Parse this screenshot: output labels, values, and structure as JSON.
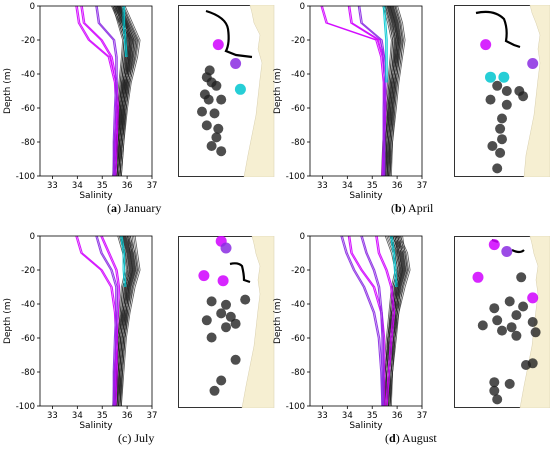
{
  "figure": {
    "panels": [
      {
        "letter": "a",
        "month": "January"
      },
      {
        "letter": "b",
        "month": "April"
      },
      {
        "letter": "c",
        "month": "July"
      },
      {
        "letter": "d",
        "month": "August"
      }
    ]
  },
  "chart_data": [
    {
      "type": "line",
      "panel": "a",
      "xlabel": "Salinity",
      "ylabel": "Depth (m)",
      "xlim": [
        32.5,
        37.0
      ],
      "ylim": [
        -100,
        0
      ],
      "xticks": [
        33,
        34,
        35,
        36,
        37
      ],
      "yticks": [
        0,
        -20,
        -40,
        -60,
        -80,
        -100
      ],
      "series_colors": {
        "black": "#1a1a1a",
        "magenta": "#cc00ff",
        "purple": "#8a2be2",
        "cyan": "#00c8d0"
      },
      "profiles": {
        "black": [
          [
            35.55,
            35.85,
            36.05,
            36.0,
            35.9,
            35.8,
            35.7,
            35.6
          ],
          [
            35.6,
            35.9,
            36.15,
            36.1,
            35.95,
            35.85,
            35.75,
            35.65
          ],
          [
            35.7,
            36.0,
            36.3,
            36.2,
            36.0,
            35.85,
            35.7,
            35.6
          ],
          [
            35.8,
            36.1,
            36.4,
            36.3,
            36.05,
            35.9,
            35.75,
            35.65
          ],
          [
            35.6,
            35.8,
            36.0,
            35.95,
            35.85,
            35.75,
            35.65,
            35.6
          ]
        ],
        "magenta": [
          [
            34.2,
            34.3,
            35.0,
            35.4,
            35.6,
            35.65,
            35.6,
            35.55
          ],
          [
            34.0,
            34.1,
            34.5,
            35.3,
            35.55,
            35.6,
            35.55,
            35.5
          ]
        ],
        "purple": [
          [
            34.8,
            34.9,
            35.5,
            35.6,
            35.6,
            35.55,
            35.5,
            35.5
          ]
        ],
        "cyan": [
          [
            35.9,
            35.9,
            35.95,
            36.0
          ]
        ]
      }
    },
    {
      "type": "line",
      "panel": "b",
      "xlabel": "Salinity",
      "ylabel": "Depth (m)",
      "xlim": [
        32.5,
        37.0
      ],
      "ylim": [
        -100,
        0
      ],
      "xticks": [
        33,
        34,
        35,
        36,
        37
      ],
      "yticks": [
        0,
        -20,
        -40,
        -60,
        -80,
        -100
      ],
      "profiles": {
        "black": [
          [
            35.7,
            35.9,
            36.0,
            35.95,
            35.85,
            35.75,
            35.65,
            35.6
          ],
          [
            35.8,
            36.0,
            36.1,
            36.05,
            35.9,
            35.8,
            35.7,
            35.6
          ],
          [
            35.9,
            36.1,
            36.2,
            36.1,
            35.95,
            35.85,
            35.7,
            35.65
          ],
          [
            35.6,
            35.8,
            35.95,
            35.9,
            35.8,
            35.7,
            35.6,
            35.55
          ]
        ],
        "magenta": [
          [
            34.1,
            34.2,
            35.3,
            35.5,
            35.55,
            35.55,
            35.5,
            35.5
          ],
          [
            33.0,
            33.2,
            35.2,
            35.4,
            35.5,
            35.5,
            35.5,
            35.45
          ]
        ],
        "purple": [
          [
            34.5,
            34.6,
            35.4,
            35.5,
            35.55,
            35.5,
            35.5,
            35.5
          ]
        ],
        "cyan": [
          [
            35.5,
            35.55,
            35.6,
            35.6,
            35.6
          ]
        ]
      }
    },
    {
      "type": "line",
      "panel": "c",
      "xlabel": "Salinity",
      "ylabel": "Depth (m)",
      "xlim": [
        32.5,
        37.0
      ],
      "ylim": [
        -100,
        0
      ],
      "xticks": [
        33,
        34,
        35,
        36,
        37
      ],
      "yticks": [
        0,
        -20,
        -40,
        -60,
        -80,
        -100
      ],
      "profiles": {
        "black": [
          [
            35.9,
            36.1,
            36.2,
            36.0,
            35.9,
            35.8,
            35.7,
            35.6
          ],
          [
            36.0,
            36.2,
            36.3,
            36.1,
            35.95,
            35.8,
            35.7,
            35.65
          ],
          [
            36.2,
            36.3,
            36.4,
            36.2,
            36.0,
            35.85,
            35.75,
            35.65
          ],
          [
            35.8,
            36.0,
            36.1,
            35.95,
            35.85,
            35.75,
            35.65,
            35.6
          ]
        ],
        "magenta": [
          [
            34.0,
            34.2,
            35.0,
            35.4,
            35.55,
            35.6,
            35.6,
            35.55
          ],
          [
            35.0,
            35.3,
            35.6,
            35.7,
            35.65,
            35.6,
            35.55,
            35.5
          ]
        ],
        "purple": [
          [
            34.8,
            35.0,
            35.4,
            35.6,
            35.6,
            35.55,
            35.5,
            35.5
          ]
        ],
        "cyan": [
          [
            35.8,
            35.9,
            35.9,
            35.95
          ]
        ]
      }
    },
    {
      "type": "line",
      "panel": "d",
      "xlabel": "Salinity",
      "ylabel": "Depth (m)",
      "xlim": [
        32.5,
        37.0
      ],
      "ylim": [
        -100,
        0
      ],
      "xticks": [
        33,
        34,
        35,
        36,
        37
      ],
      "yticks": [
        0,
        -20,
        -40,
        -60,
        -80,
        -100
      ],
      "profiles": {
        "black": [
          [
            35.9,
            36.1,
            36.2,
            36.0,
            35.9,
            35.8,
            35.7,
            35.6
          ],
          [
            36.0,
            36.3,
            36.4,
            36.2,
            35.95,
            35.85,
            35.7,
            35.6
          ],
          [
            35.7,
            35.95,
            36.1,
            35.95,
            35.85,
            35.75,
            35.65,
            35.6
          ],
          [
            36.1,
            36.2,
            36.3,
            36.1,
            35.95,
            35.8,
            35.7,
            35.65
          ]
        ],
        "magenta": [
          [
            35.2,
            35.3,
            35.6,
            35.8,
            35.9,
            35.8,
            35.7,
            35.6
          ],
          [
            34.1,
            34.2,
            34.6,
            35.1,
            35.4,
            35.5,
            35.5,
            35.5
          ]
        ],
        "purple": [
          [
            33.8,
            34.0,
            34.3,
            34.7,
            35.1,
            35.3,
            35.4,
            35.45
          ],
          [
            34.6,
            34.8,
            35.1,
            35.3,
            35.4,
            35.45,
            35.45,
            35.45
          ]
        ],
        "cyan": [
          [
            35.8,
            35.9,
            35.95,
            36.0
          ]
        ]
      }
    }
  ],
  "maps": [
    {
      "panel": "a",
      "stations": {
        "black": [
          [
            0.3,
            0.42
          ],
          [
            0.33,
            0.38
          ],
          [
            0.35,
            0.45
          ],
          [
            0.4,
            0.47
          ],
          [
            0.28,
            0.52
          ],
          [
            0.32,
            0.55
          ],
          [
            0.25,
            0.62
          ],
          [
            0.38,
            0.63
          ],
          [
            0.3,
            0.7
          ],
          [
            0.45,
            0.55
          ],
          [
            0.42,
            0.72
          ],
          [
            0.4,
            0.77
          ],
          [
            0.35,
            0.82
          ],
          [
            0.45,
            0.85
          ]
        ],
        "magenta": [
          [
            0.42,
            0.23
          ]
        ],
        "purple": [
          [
            0.6,
            0.34
          ]
        ],
        "cyan": [
          [
            0.65,
            0.49
          ]
        ]
      }
    },
    {
      "panel": "b",
      "stations": {
        "black": [
          [
            0.45,
            0.47
          ],
          [
            0.55,
            0.5
          ],
          [
            0.38,
            0.55
          ],
          [
            0.55,
            0.58
          ],
          [
            0.68,
            0.5
          ],
          [
            0.72,
            0.53
          ],
          [
            0.5,
            0.66
          ],
          [
            0.48,
            0.72
          ],
          [
            0.5,
            0.78
          ],
          [
            0.4,
            0.82
          ],
          [
            0.48,
            0.86
          ],
          [
            0.45,
            0.95
          ]
        ],
        "magenta": [
          [
            0.33,
            0.23
          ]
        ],
        "purple": [
          [
            0.82,
            0.34
          ]
        ],
        "cyan": [
          [
            0.38,
            0.42
          ],
          [
            0.52,
            0.42
          ]
        ]
      }
    },
    {
      "panel": "c",
      "stations": {
        "black": [
          [
            0.35,
            0.38
          ],
          [
            0.5,
            0.4
          ],
          [
            0.7,
            0.37
          ],
          [
            0.45,
            0.45
          ],
          [
            0.55,
            0.47
          ],
          [
            0.3,
            0.49
          ],
          [
            0.6,
            0.51
          ],
          [
            0.5,
            0.53
          ],
          [
            0.35,
            0.59
          ],
          [
            0.6,
            0.72
          ],
          [
            0.45,
            0.84
          ],
          [
            0.38,
            0.9
          ]
        ],
        "magenta": [
          [
            0.45,
            0.03
          ],
          [
            0.27,
            0.23
          ],
          [
            0.47,
            0.26
          ]
        ],
        "purple": [
          [
            0.5,
            0.07
          ]
        ],
        "cyan": []
      }
    },
    {
      "panel": "d",
      "stations": {
        "black": [
          [
            0.7,
            0.24
          ],
          [
            0.58,
            0.38
          ],
          [
            0.72,
            0.41
          ],
          [
            0.42,
            0.42
          ],
          [
            0.65,
            0.46
          ],
          [
            0.45,
            0.49
          ],
          [
            0.82,
            0.5
          ],
          [
            0.3,
            0.52
          ],
          [
            0.6,
            0.53
          ],
          [
            0.5,
            0.55
          ],
          [
            0.85,
            0.56
          ],
          [
            0.65,
            0.58
          ],
          [
            0.75,
            0.75
          ],
          [
            0.82,
            0.74
          ],
          [
            0.42,
            0.85
          ],
          [
            0.58,
            0.86
          ],
          [
            0.42,
            0.9
          ],
          [
            0.45,
            0.95
          ]
        ],
        "magenta": [
          [
            0.42,
            0.05
          ],
          [
            0.25,
            0.24
          ],
          [
            0.82,
            0.36
          ]
        ],
        "purple": [
          [
            0.55,
            0.09
          ]
        ],
        "cyan": []
      }
    }
  ]
}
